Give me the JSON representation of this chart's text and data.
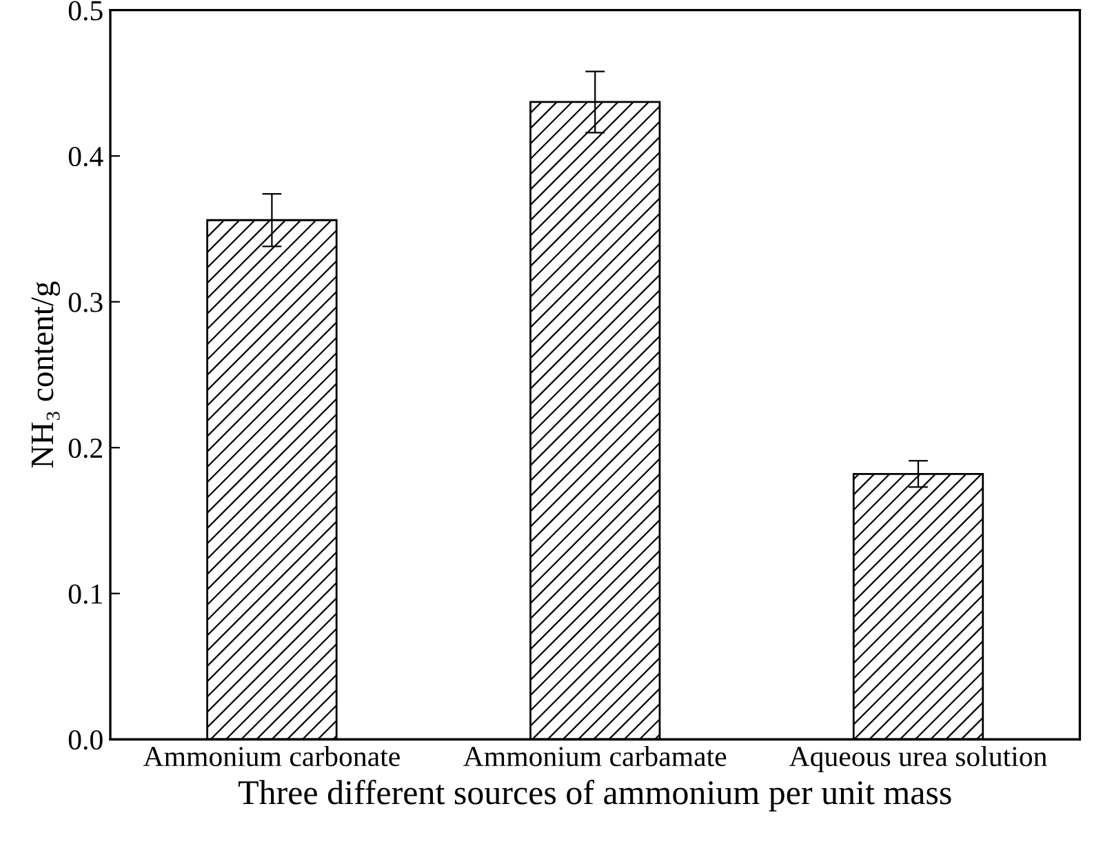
{
  "chart_data": {
    "type": "bar",
    "xlabel": "Three different sources of ammonium per unit mass",
    "ylabel": "NH₃ content/g",
    "categories": [
      "Ammonium carbonate",
      "Ammonium carbamate",
      "Aqueous urea solution"
    ],
    "values": [
      0.356,
      0.437,
      0.182
    ],
    "errors": [
      0.018,
      0.021,
      0.009
    ],
    "color": "#000000",
    "ylim": [
      0,
      0.5
    ],
    "yticks": [
      {
        "value": 0,
        "label": "0.0"
      },
      0.1,
      0.2,
      0.3,
      0.4,
      0.5
    ],
    "grid": false,
    "legend": false
  }
}
